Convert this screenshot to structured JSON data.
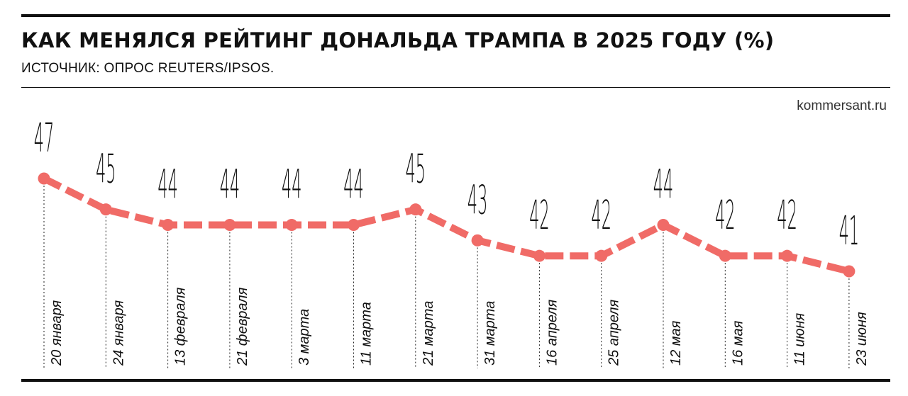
{
  "header": {
    "title": "КАК МЕНЯЛСЯ РЕЙТИНГ ДОНАЛЬДА ТРАМПА В 2025 ГОДУ (%)",
    "subtitle": "ИСТОЧНИК: ОПРОС REUTERS/IPSOS.",
    "source_site": "kommersant.ru"
  },
  "colors": {
    "line": "#f06b67",
    "text": "#111111"
  },
  "chart_data": {
    "type": "line",
    "title": "КАК МЕНЯЛСЯ РЕЙТИНГ ДОНАЛЬДА ТРАМПА В 2025 ГОДУ (%)",
    "xlabel": "",
    "ylabel": "",
    "categories": [
      "20 января",
      "24 января",
      "13 февраля",
      "21 февраля",
      "3 марта",
      "11 марта",
      "21 марта",
      "31 марта",
      "16 апреля",
      "25 апреля",
      "12 мая",
      "16 мая",
      "11 июня",
      "23 июня"
    ],
    "series": [
      {
        "values": [
          47,
          45,
          44,
          44,
          44,
          44,
          45,
          43,
          42,
          42,
          44,
          42,
          42,
          41
        ]
      }
    ],
    "ylim": [
      41,
      47
    ],
    "grid": false,
    "legend": "none",
    "data_labels": true,
    "line_style": "dashed",
    "color": "#f06b67"
  }
}
